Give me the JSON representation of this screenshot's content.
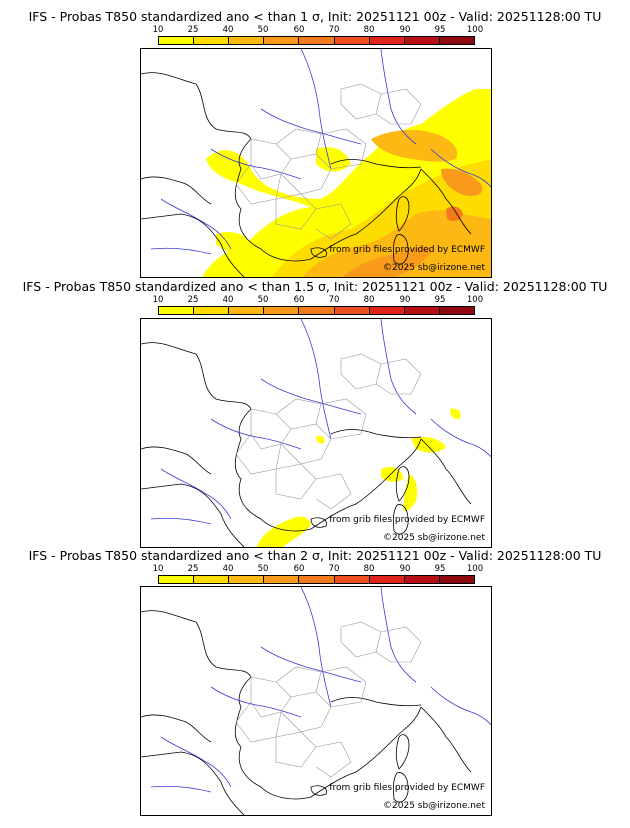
{
  "colors": {
    "c10": "#ffff00",
    "c25": "#fedc00",
    "c40": "#fdb813",
    "c50": "#f99a1a",
    "c60": "#f47a1d",
    "c70": "#ef4f1c",
    "c80": "#e0231b",
    "c90": "#b80f14",
    "c95": "#8f0a10",
    "c100": "#5a0409",
    "coast": "#000000",
    "rivers": "#3a3ad8",
    "borders": "#9a9a9a"
  },
  "scale_ticks": [
    "10",
    "25",
    "40",
    "50",
    "60",
    "70",
    "80",
    "90",
    "95",
    "100"
  ],
  "panels": [
    {
      "title": "IFS - Probas T850  standardized ano < than 1 σ, Init: 20251121 00z - Valid: 20251128:00 TU",
      "credit_source": "from grib files provided by ECMWF",
      "credit_copyright": "©2025 sb@irizone.net"
    },
    {
      "title": "IFS - Probas T850  standardized ano < than 1.5 σ, Init: 20251121 00z - Valid: 20251128:00 TU",
      "credit_source": "from grib files provided by ECMWF",
      "credit_copyright": "©2025 sb@irizone.net"
    },
    {
      "title": "IFS - Probas T850  standardized ano < than 2 σ, Init: 20251121 00z - Valid: 20251128:00 TU",
      "credit_source": "from grib files provided by ECMWF",
      "credit_copyright": "©2025 sb@irizone.net"
    }
  ]
}
